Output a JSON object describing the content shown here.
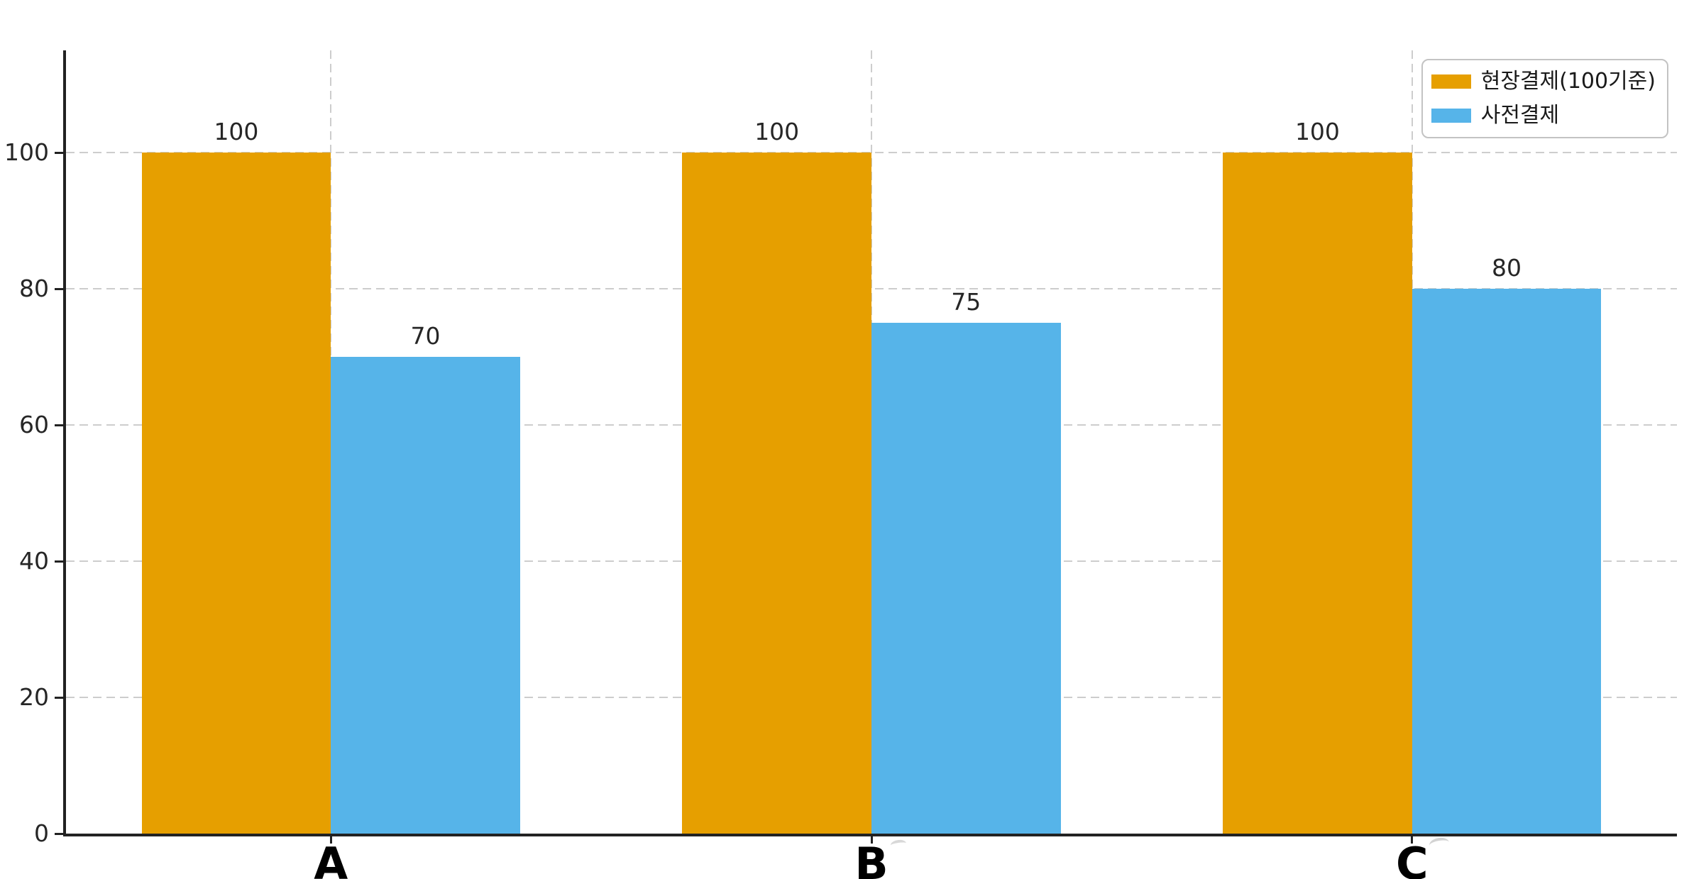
{
  "chart_data": {
    "type": "bar",
    "title": "",
    "xlabel": "",
    "ylabel": "",
    "categories": [
      "A",
      "B",
      "C"
    ],
    "series": [
      {
        "key": "onsite-payment",
        "name": "현장결제(100기준)",
        "color": "#E69F00",
        "values": [
          100,
          100,
          100
        ]
      },
      {
        "key": "advance-payment",
        "name": "사전결제",
        "color": "#56B4E9",
        "values": [
          70,
          75,
          80
        ]
      }
    ],
    "yticks": [
      0,
      20,
      40,
      60,
      80,
      100
    ],
    "ylim": [
      0,
      115
    ],
    "xlim": [
      -0.49,
      2.49
    ],
    "bar_width_axis_units": 0.35,
    "grid": "dashed, horizontal at yticks and vertical at category ticks, drawn behind bars",
    "legend_position": "top-right"
  },
  "colors": {
    "background": "#ffffff",
    "axis": "#222222",
    "gridline": "#cdcdcd",
    "tick_label": "#262626",
    "value_label": "#262626",
    "category_label": "#000000",
    "legend_border": "#c3c3c3",
    "legend_text": "#1a1a1a"
  }
}
